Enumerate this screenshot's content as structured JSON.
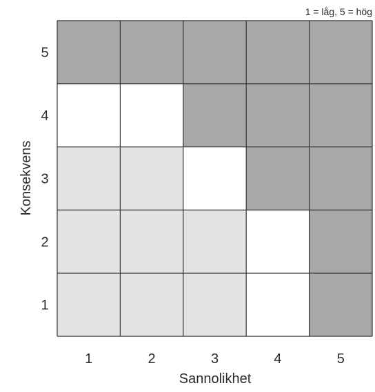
{
  "chart_data": {
    "type": "heatmap",
    "title": "",
    "note": "1 = låg, 5 = hög",
    "xlabel": "Sannolikhet",
    "ylabel": "Konsekvens",
    "x_categories": [
      "1",
      "2",
      "3",
      "4",
      "5"
    ],
    "y_categories": [
      "1",
      "2",
      "3",
      "4",
      "5"
    ],
    "grid": true,
    "legend": "none",
    "colors": {
      "low": "#e3e3e3",
      "medium": "#ffffff",
      "high": "#a8a8a8",
      "border": "#333333"
    },
    "cells": [
      [
        "low",
        "low",
        "low",
        "medium",
        "high"
      ],
      [
        "low",
        "low",
        "low",
        "medium",
        "high"
      ],
      [
        "low",
        "low",
        "medium",
        "high",
        "high"
      ],
      [
        "medium",
        "medium",
        "high",
        "high",
        "high"
      ],
      [
        "high",
        "high",
        "high",
        "high",
        "high"
      ]
    ]
  }
}
